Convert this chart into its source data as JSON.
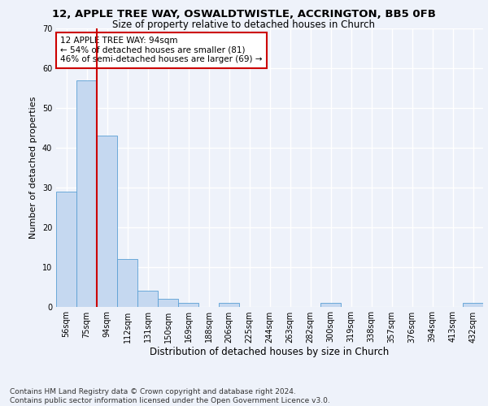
{
  "title1": "12, APPLE TREE WAY, OSWALDTWISTLE, ACCRINGTON, BB5 0FB",
  "title2": "Size of property relative to detached houses in Church",
  "xlabel": "Distribution of detached houses by size in Church",
  "ylabel": "Number of detached properties",
  "categories": [
    "56sqm",
    "75sqm",
    "94sqm",
    "112sqm",
    "131sqm",
    "150sqm",
    "169sqm",
    "188sqm",
    "206sqm",
    "225sqm",
    "244sqm",
    "263sqm",
    "282sqm",
    "300sqm",
    "319sqm",
    "338sqm",
    "357sqm",
    "376sqm",
    "394sqm",
    "413sqm",
    "432sqm"
  ],
  "values": [
    29,
    57,
    43,
    12,
    4,
    2,
    1,
    0,
    1,
    0,
    0,
    0,
    0,
    1,
    0,
    0,
    0,
    0,
    0,
    0,
    1
  ],
  "bar_color": "#c5d8f0",
  "bar_edge_color": "#5a9fd4",
  "bar_edge_width": 0.6,
  "property_line_color": "#cc0000",
  "ylim": [
    0,
    70
  ],
  "yticks": [
    0,
    10,
    20,
    30,
    40,
    50,
    60,
    70
  ],
  "annotation_text": "12 APPLE TREE WAY: 94sqm\n← 54% of detached houses are smaller (81)\n46% of semi-detached houses are larger (69) →",
  "annotation_box_color": "#ffffff",
  "annotation_box_edge": "#cc0000",
  "footer": "Contains HM Land Registry data © Crown copyright and database right 2024.\nContains public sector information licensed under the Open Government Licence v3.0.",
  "bg_color": "#eef2fa",
  "plot_bg_color": "#eef2fa",
  "grid_color": "#ffffff",
  "title1_fontsize": 9.5,
  "title2_fontsize": 8.5,
  "xlabel_fontsize": 8.5,
  "ylabel_fontsize": 8,
  "tick_fontsize": 7,
  "footer_fontsize": 6.5
}
